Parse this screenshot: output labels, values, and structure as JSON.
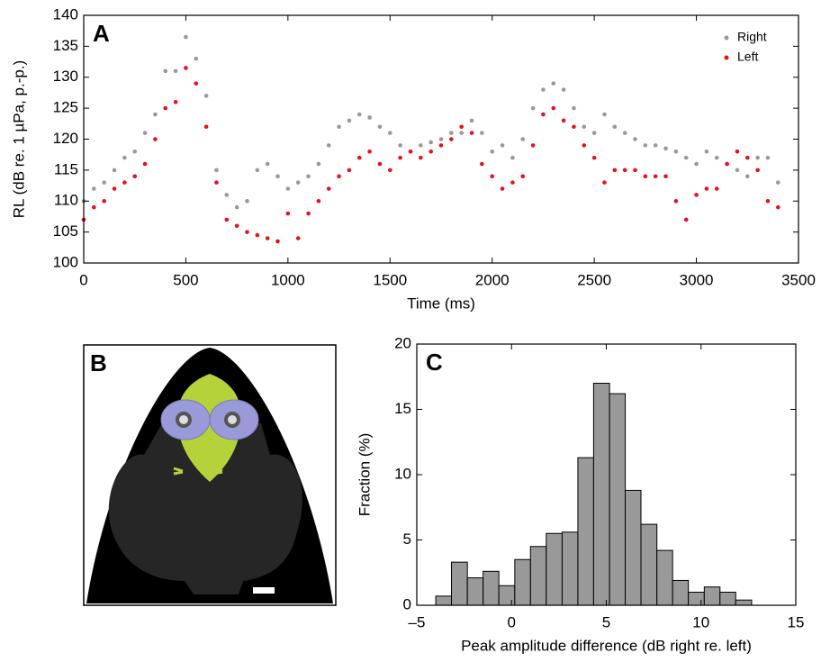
{
  "chart_data": [
    {
      "type": "scatter",
      "panel": "A",
      "xlabel": "Time (ms)",
      "ylabel": "RL (dB re. 1 µPa, p.-p.)",
      "xlim": [
        0,
        3500
      ],
      "xticks": [
        0,
        500,
        1000,
        1500,
        2000,
        2500,
        3000,
        3500
      ],
      "ylim": [
        100,
        140
      ],
      "yticks": [
        100,
        105,
        110,
        115,
        120,
        125,
        130,
        135,
        140
      ],
      "legend": "upper right",
      "x": [
        0,
        50,
        100,
        150,
        200,
        250,
        300,
        350,
        400,
        450,
        500,
        550,
        600,
        650,
        700,
        750,
        800,
        850,
        900,
        950,
        1000,
        1050,
        1100,
        1150,
        1200,
        1250,
        1300,
        1350,
        1400,
        1450,
        1500,
        1550,
        1600,
        1650,
        1700,
        1750,
        1800,
        1850,
        1900,
        1950,
        2000,
        2050,
        2100,
        2150,
        2200,
        2250,
        2300,
        2350,
        2400,
        2450,
        2500,
        2550,
        2600,
        2650,
        2700,
        2750,
        2800,
        2850,
        2900,
        2950,
        3000,
        3050,
        3100,
        3150,
        3200,
        3250,
        3300,
        3350,
        3400
      ],
      "series": [
        {
          "name": "Right",
          "color": "#999999",
          "values": [
            110,
            112,
            113,
            115,
            117,
            118,
            121,
            124,
            131,
            131,
            136.5,
            133,
            127,
            115,
            111,
            109,
            110,
            115,
            116,
            114,
            112,
            113,
            114,
            116,
            119,
            122,
            123,
            124,
            123.5,
            122,
            121,
            119,
            118,
            119,
            119.5,
            120,
            121,
            121,
            123,
            121,
            118,
            119,
            117,
            120,
            125,
            128,
            129,
            128,
            125,
            122,
            121,
            124,
            122,
            121,
            120,
            119,
            119,
            118.5,
            118,
            117,
            116,
            118,
            117,
            116,
            115,
            114,
            117,
            117,
            113
          ]
        },
        {
          "name": "Left",
          "color": "#e8101a",
          "values": [
            107,
            109,
            110,
            112,
            113,
            114,
            116,
            120,
            125,
            126,
            131.5,
            129,
            122,
            113,
            107,
            106,
            105,
            104.5,
            104,
            103.5,
            108,
            104,
            108,
            110,
            112,
            114,
            115,
            117,
            118,
            116,
            115,
            117,
            118,
            117,
            118,
            119,
            120,
            122,
            121,
            116,
            114,
            112,
            113,
            114,
            119,
            124,
            125,
            123,
            122,
            119,
            117,
            113,
            115,
            115,
            115,
            114,
            114,
            114,
            110,
            107,
            111,
            112,
            112,
            116,
            118,
            117,
            115,
            110,
            109
          ]
        }
      ]
    },
    {
      "type": "histogram",
      "panel": "C",
      "xlabel": "Peak amplitude difference (dB right re. left)",
      "ylabel": "Fraction (%)",
      "xlim": [
        -5,
        15
      ],
      "xticks": [
        {
          "value": -5,
          "label": "–5"
        },
        0,
        5,
        10,
        15
      ],
      "ylim": [
        0,
        20
      ],
      "yticks": [
        0,
        5,
        10,
        15,
        20
      ],
      "color": "#999999",
      "bins": [
        -4,
        -3.17,
        -2.33,
        -1.5,
        -0.67,
        0.17,
        1,
        1.83,
        2.67,
        3.5,
        4.33,
        5.17,
        6,
        6.83,
        7.67,
        8.5,
        9.33,
        10.17,
        11,
        11.83,
        12.67
      ],
      "values": [
        0.7,
        3.3,
        2.1,
        2.6,
        1.5,
        3.5,
        4.5,
        5.5,
        5.6,
        11.3,
        17,
        16.2,
        8.8,
        6.2,
        4.2,
        1.9,
        1.0,
        1.4,
        1.0,
        0.4
      ]
    }
  ],
  "panel_b": {
    "label": "B"
  }
}
